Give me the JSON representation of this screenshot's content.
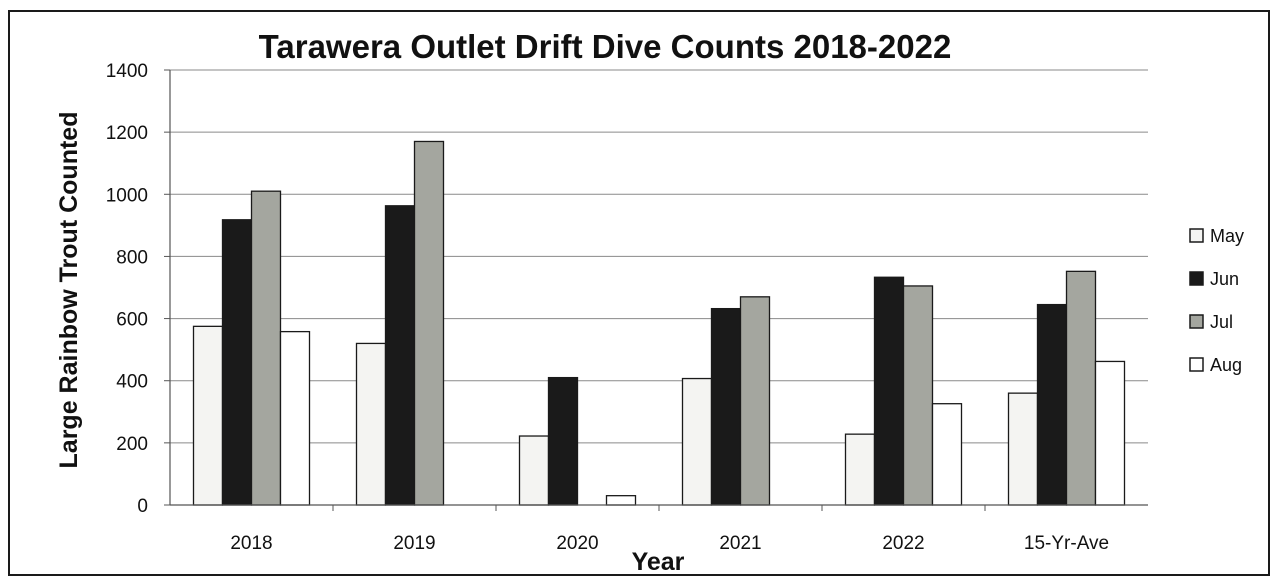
{
  "chart_data": {
    "type": "bar",
    "title": "Tarawera Outlet Drift Dive Counts 2018-2022",
    "xlabel": "Year",
    "ylabel": "Large Rainbow Trout Counted",
    "categories": [
      "2018",
      "2019",
      "2020",
      "2021",
      "2022",
      "15-Yr-Ave"
    ],
    "ylim": [
      0,
      1400
    ],
    "yticks": [
      "0",
      "200",
      "400",
      "600",
      "800",
      "1000",
      "1200",
      "1400"
    ],
    "grid": true,
    "legend_position": "right",
    "series": [
      {
        "name": "May",
        "color": "#f4f4f2",
        "values": [
          575,
          520,
          222,
          407,
          228,
          360
        ]
      },
      {
        "name": "Jun",
        "color": "#1a1a1a",
        "values": [
          918,
          963,
          410,
          632,
          733,
          645
        ]
      },
      {
        "name": "Jul",
        "color": "#a4a69f",
        "values": [
          1010,
          1170,
          0,
          670,
          705,
          752
        ]
      },
      {
        "name": "Aug",
        "color": "#ffffff",
        "values": [
          558,
          0,
          30,
          0,
          326,
          462
        ]
      }
    ]
  }
}
